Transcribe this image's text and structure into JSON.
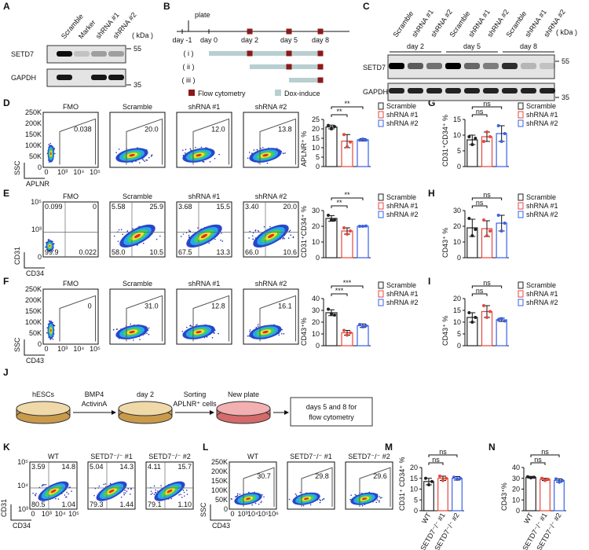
{
  "panel_labels": [
    "A",
    "B",
    "C",
    "D",
    "E",
    "F",
    "G",
    "H",
    "I",
    "J",
    "K",
    "L",
    "M",
    "N"
  ],
  "blot_a": {
    "lanes": [
      "Scramble",
      "Marker",
      "shRNA #1",
      "shRNA #2"
    ],
    "unit": "( kDa )",
    "proteins": [
      "SETD7",
      "GAPDH"
    ],
    "markers": [
      "55",
      "35"
    ]
  },
  "timeline_b": {
    "plate": "plate",
    "days": [
      "day -1",
      "day 0",
      "day 2",
      "day 5",
      "day 8"
    ],
    "conditions": [
      "( i )",
      "( ii )",
      "( iii )"
    ],
    "legend": [
      "Flow cytometry",
      "Dox-induce"
    ]
  },
  "blot_c": {
    "lanes": [
      "Scramble",
      "shRNA #1",
      "shRNA #2",
      "Scramble",
      "shRNA #1",
      "shRNA #2",
      "Scramble",
      "shRNA #1",
      "shRNA #2"
    ],
    "days": [
      "day 2",
      "day 5",
      "day 8"
    ],
    "unit": "( kDa )",
    "proteins": [
      "SETD7",
      "GAPDH"
    ],
    "markers": [
      "55",
      "35"
    ]
  },
  "flow_d": {
    "x_label": "APLNR",
    "y_label": "SSC",
    "samples": [
      "FMO",
      "Scramble",
      "shRNA #1",
      "shRNA #2"
    ],
    "gates": [
      "0.038",
      "20.0",
      "12.0",
      "13.8"
    ],
    "yticks": [
      "0",
      "50K",
      "100K",
      "150K",
      "200K",
      "250K"
    ],
    "xticks": [
      "0",
      "10³",
      "10⁴",
      "10⁵"
    ]
  },
  "flow_e": {
    "x_label": "CD34",
    "y_label": "CD31",
    "samples": [
      "FMO",
      "Scramble",
      "shRNA #1",
      "shRNA #2"
    ],
    "quadrants": [
      [
        "0.099",
        "0",
        "99.9",
        "0.022"
      ],
      [
        "5.58",
        "25.9",
        "58.0",
        "10.5"
      ],
      [
        "3.68",
        "15.5",
        "67.5",
        "13.3"
      ],
      [
        "3.40",
        "20.0",
        "66.0",
        "10.6"
      ]
    ],
    "yticks": [
      "0",
      "10³",
      "10⁵"
    ]
  },
  "flow_f": {
    "x_label": "CD43",
    "y_label": "SSC",
    "samples": [
      "FMO",
      "Scramble",
      "shRNA #1",
      "shRNA #2"
    ],
    "gates": [
      "0",
      "31.0",
      "12.8",
      "16.1"
    ],
    "yticks": [
      "0",
      "50K",
      "100K",
      "150K",
      "200K",
      "250K"
    ],
    "xticks": [
      "0",
      "10³",
      "10⁴",
      "10⁵"
    ]
  },
  "scheme_j": {
    "start": "hESCs",
    "factors": [
      "BMP4",
      "ActivinA"
    ],
    "day": "day 2",
    "sorting": [
      "Sorting",
      "APLNR⁺ cells"
    ],
    "new_plate": "New plate",
    "readout": [
      "days 5 and 8 for",
      "flow cytometry"
    ]
  },
  "flow_k": {
    "x_label": "CD34",
    "y_label": "CD31",
    "samples": [
      "WT",
      "SETD7⁻/⁻ #1",
      "SETD7⁻/⁻ #2"
    ],
    "quadrants": [
      [
        "3.59",
        "14.8",
        "80.5",
        "1.04"
      ],
      [
        "5.04",
        "14.3",
        "79.3",
        "1.44"
      ],
      [
        "4.11",
        "15.7",
        "79.1",
        "1.10"
      ]
    ],
    "yticks": [
      "10³",
      "10⁴",
      "10⁵"
    ],
    "xticks": [
      "0",
      "10³",
      "10⁴",
      "10⁵"
    ]
  },
  "flow_l": {
    "x_label": "CD43",
    "y_label": "SSC",
    "samples": [
      "WT",
      "SETD7⁻/⁻ #1",
      "SETD7⁻/⁻ #2"
    ],
    "gates": [
      "30.7",
      "29.8",
      "29.6"
    ],
    "yticks": [
      "0",
      "50K",
      "100K",
      "150K",
      "200K",
      "250K"
    ],
    "xticks": [
      "0",
      "10³",
      "10⁴",
      "10⁵",
      "10⁶"
    ]
  },
  "chart_data": [
    {
      "type": "bar",
      "ylabel": "APLNR⁺ %",
      "categories": [
        "Scramble",
        "shRNA #1",
        "shRNA #2"
      ],
      "colors": [
        "#222222",
        "#e8463a",
        "#3a62e8"
      ],
      "legend": true,
      "values": [
        21,
        13.5,
        14.2
      ],
      "errors": [
        1,
        3.5,
        0.6
      ],
      "points": [
        [
          21.8,
          20,
          21.2
        ],
        [
          17,
          10.5,
          13
        ],
        [
          14,
          14.6,
          14
        ]
      ],
      "significance": [
        "**",
        "**"
      ],
      "ylim": [
        0,
        25
      ],
      "yticks": [
        0,
        5,
        10,
        15,
        20,
        25
      ]
    },
    {
      "type": "bar",
      "ylabel": "CD31⁺CD34⁺ %",
      "categories": [
        "Scramble",
        "shRNA #1",
        "shRNA #2"
      ],
      "colors": [
        "#222222",
        "#e8463a",
        "#3a62e8"
      ],
      "legend": true,
      "values": [
        25,
        17,
        20
      ],
      "errors": [
        1.8,
        2,
        0.3
      ],
      "points": [
        [
          27,
          24,
          24
        ],
        [
          19,
          15,
          17
        ],
        [
          20,
          20,
          20.2
        ]
      ],
      "significance": [
        "**",
        "**"
      ],
      "ylim": [
        0,
        30
      ],
      "yticks": [
        0,
        10,
        20,
        30
      ]
    },
    {
      "type": "bar",
      "ylabel": "CD43⁺%",
      "categories": [
        "Scramble",
        "shRNA #1",
        "shRNA #2"
      ],
      "colors": [
        "#222222",
        "#e8463a",
        "#3a62e8"
      ],
      "legend": true,
      "values": [
        28,
        11,
        17
      ],
      "errors": [
        2.5,
        2,
        1.5
      ],
      "points": [
        [
          31,
          27,
          26
        ],
        [
          13,
          9,
          11
        ],
        [
          18,
          16,
          17
        ]
      ],
      "significance": [
        "***",
        "***"
      ],
      "ylim": [
        0,
        40
      ],
      "yticks": [
        0,
        10,
        20,
        30,
        40
      ]
    },
    {
      "type": "bar",
      "ylabel": "CD31⁺CD34⁺ %",
      "categories": [
        "Scramble",
        "shRNA #1",
        "shRNA #2"
      ],
      "colors": [
        "#222222",
        "#e8463a",
        "#3a62e8"
      ],
      "legend": true,
      "values": [
        8.5,
        9.5,
        10.5
      ],
      "errors": [
        1.5,
        1.5,
        2.5
      ],
      "points": [
        [
          9.5,
          7,
          9
        ],
        [
          8,
          11,
          9.5
        ],
        [
          13,
          8,
          10.5
        ]
      ],
      "significance": [
        "ns",
        "ns"
      ],
      "ylim": [
        0,
        15
      ],
      "yticks": [
        0,
        5,
        10,
        15
      ]
    },
    {
      "type": "bar",
      "ylabel": "CD43⁺ %",
      "categories": [
        "Scramble",
        "shRNA #1",
        "shRNA #2"
      ],
      "colors": [
        "#222222",
        "#e8463a",
        "#3a62e8"
      ],
      "legend": true,
      "values": [
        19,
        18.5,
        22
      ],
      "errors": [
        5.5,
        5,
        5
      ],
      "points": [
        [
          25,
          14,
          18
        ],
        [
          24,
          14,
          17
        ],
        [
          27,
          17,
          22
        ]
      ],
      "significance": [
        "ns",
        "ns"
      ],
      "ylim": [
        0,
        30
      ],
      "yticks": [
        0,
        10,
        20,
        30
      ]
    },
    {
      "type": "bar",
      "ylabel": "CD43⁺ %",
      "categories": [
        "Scramble",
        "shRNA #1",
        "shRNA #2"
      ],
      "colors": [
        "#222222",
        "#e8463a",
        "#3a62e8"
      ],
      "legend": true,
      "values": [
        12,
        14.5,
        11
      ],
      "errors": [
        2,
        2.5,
        0.7
      ],
      "points": [
        [
          14,
          10,
          12
        ],
        [
          17,
          12,
          14.5
        ],
        [
          11,
          11.5,
          10.5
        ]
      ],
      "significance": [
        "ns",
        "ns"
      ],
      "ylim": [
        0,
        20
      ],
      "yticks": [
        0,
        5,
        10,
        15,
        20
      ]
    },
    {
      "type": "bar",
      "ylabel": "CD31⁺ CD34⁺ %",
      "categories": [
        "WT",
        "SETD7⁻/⁻ #1",
        "SETD7⁻/⁻ #2"
      ],
      "colors": [
        "#222222",
        "#e8463a",
        "#3a62e8"
      ],
      "legend": false,
      "values": [
        13.5,
        15,
        15
      ],
      "errors": [
        1.5,
        1,
        0.8
      ],
      "points": [
        [
          15,
          12,
          13.5
        ],
        [
          16,
          14,
          15
        ],
        [
          15.5,
          14.5,
          15
        ]
      ],
      "significance": [
        "ns",
        "ns"
      ],
      "ylim": [
        0,
        20
      ],
      "yticks": [
        0,
        5,
        10,
        15,
        20
      ]
    },
    {
      "type": "bar",
      "ylabel": "CD43⁺%",
      "categories": [
        "WT",
        "SETD7⁻/⁻ #1",
        "SETD7⁻/⁻ #2"
      ],
      "colors": [
        "#222222",
        "#e8463a",
        "#3a62e8"
      ],
      "legend": false,
      "values": [
        31,
        29,
        28
      ],
      "errors": [
        0.8,
        1,
        1.5
      ],
      "points": [
        [
          31.5,
          30.5,
          31
        ],
        [
          30,
          28,
          29
        ],
        [
          29.5,
          26.5,
          28
        ]
      ],
      "significance": [
        "ns",
        "ns"
      ],
      "ylim": [
        0,
        40
      ],
      "yticks": [
        0,
        10,
        20,
        30,
        40
      ]
    }
  ]
}
